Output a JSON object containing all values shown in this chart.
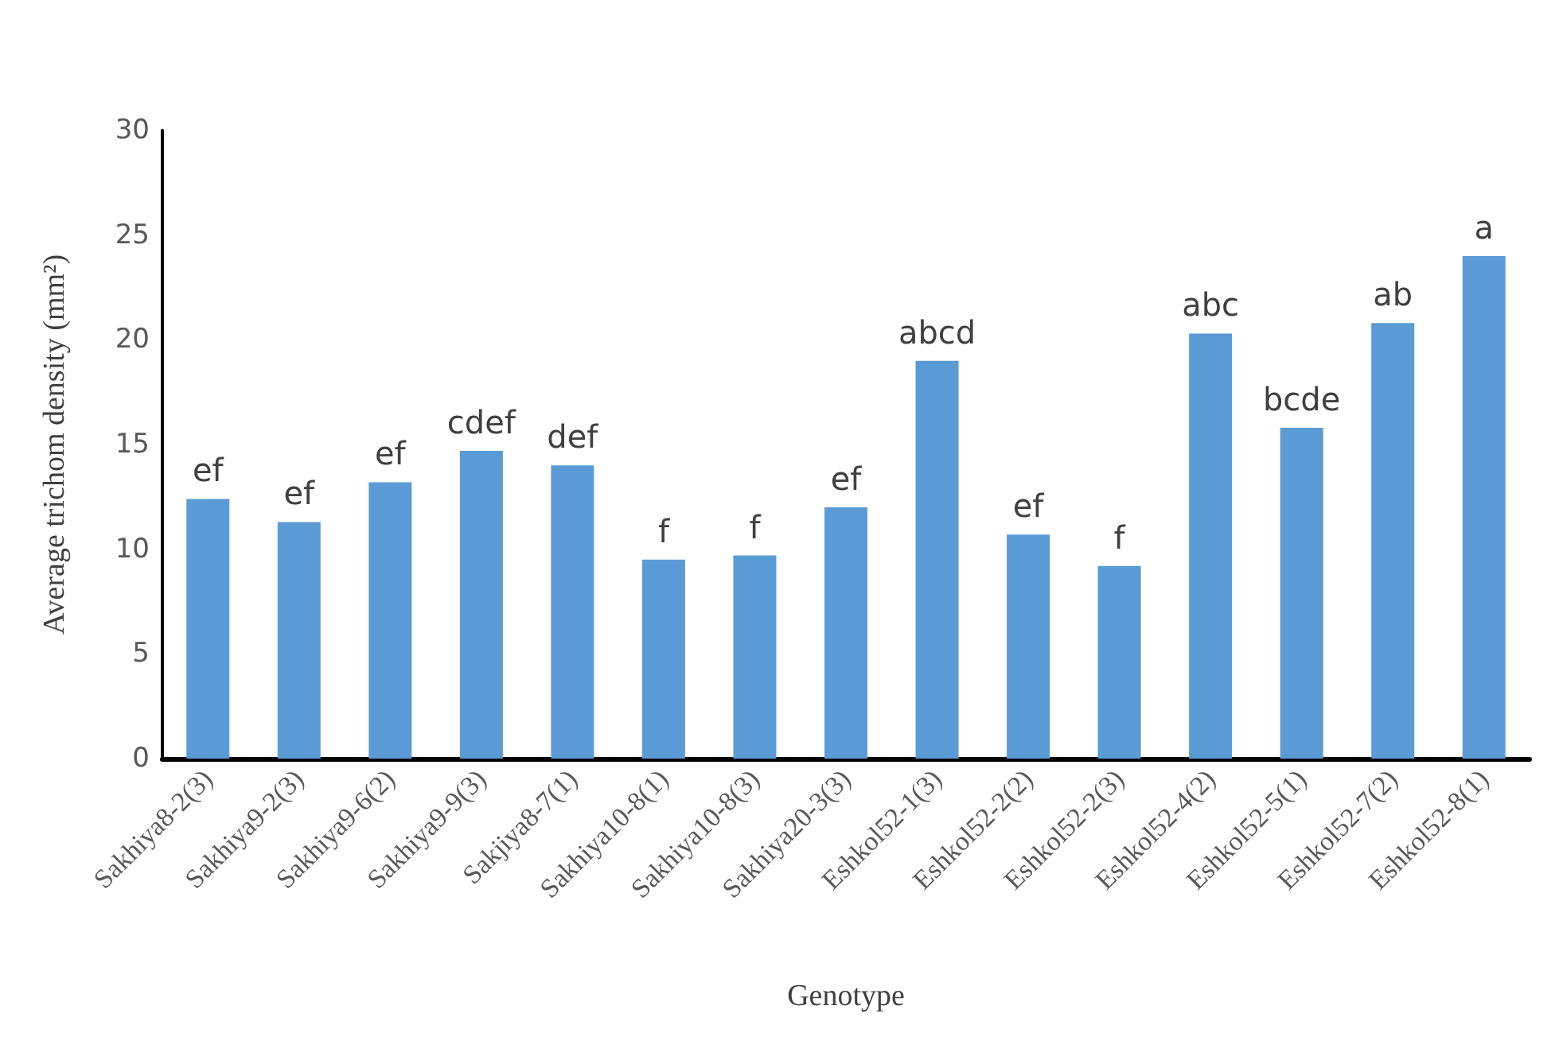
{
  "chart_data": {
    "type": "bar",
    "xlabel": "Genotype",
    "ylabel": "Average trichom density (mm²)",
    "categories": [
      "Sakhiya8-2(3)",
      "Sakhiya9-2(3)",
      "Sakhiya9-6(2)",
      "Sakhiya9-9(3)",
      "Sakjiya8-7(1)",
      "Sakhiya10-8(1)",
      "Sakhiya10-8(3)",
      "Sakhiya20-3(3)",
      "Eshkol52-1(3)",
      "Eshkol52-2(2)",
      "Eshkol52-2(3)",
      "Eshkol52-4(2)",
      "Eshkol52-5(1)",
      "Eshkol52-7(2)",
      "Eshkol52-8(1)"
    ],
    "values": [
      12.4,
      11.3,
      13.2,
      14.7,
      14.0,
      9.5,
      9.7,
      12.0,
      19.0,
      10.7,
      9.2,
      20.3,
      15.8,
      20.8,
      24.0
    ],
    "value_labels": [
      "ef",
      "ef",
      "ef",
      "cdef",
      "def",
      "f",
      "f",
      "ef",
      "abcd",
      "ef",
      "f",
      "abc",
      "bcde",
      "ab",
      "a"
    ],
    "color": "#5b9bd5",
    "ylim": [
      0,
      30
    ],
    "yticks": [
      0,
      5,
      10,
      15,
      20,
      25,
      30
    ]
  }
}
